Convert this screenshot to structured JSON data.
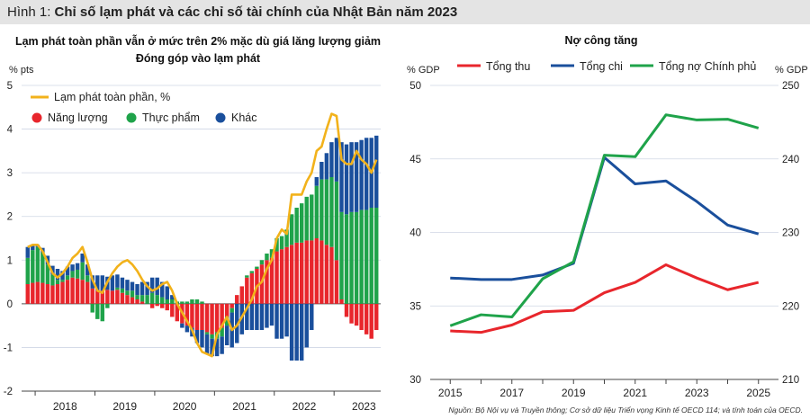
{
  "header": {
    "figure_prefix": "Hình 1:",
    "figure_title": "Chỉ số lạm phát và các chỉ số tài chính của Nhật Bản năm 2023"
  },
  "source_note": "Nguồn: Bộ Nội vụ và Truyền thông; Cơ sở dữ liệu Triển vọng Kinh tế OECD 114; và tính toán của OECD.",
  "colors": {
    "energy": "#e8262c",
    "food": "#1fa34a",
    "other": "#1a4f9c",
    "headline": "#f2b21b",
    "revenue": "#e8262c",
    "expenditure": "#1a4f9c",
    "debt": "#1fa34a"
  },
  "chart_data": [
    {
      "type": "bar",
      "stacked": true,
      "title": "Lạm phát toàn phần vẫn ở mức trên 2% mặc dù giá lăng lượng giảm",
      "subtitle": "Đóng góp vào lạm phát",
      "ylabel": "% pts",
      "ylim": [
        -2,
        5
      ],
      "yticks": [
        -2,
        -1,
        0,
        1,
        2,
        3,
        4,
        5
      ],
      "xticks": [
        "2018",
        "2019",
        "2020",
        "2021",
        "2022",
        "2023"
      ],
      "legend_position": "top-left",
      "headline_label": "Lạm phát toàn phần, %",
      "series_names": [
        "Năng lượng",
        "Thực phẩm",
        "Khác"
      ],
      "categories": [
        "2017-11",
        "2017-12",
        "2018-01",
        "2018-02",
        "2018-03",
        "2018-04",
        "2018-05",
        "2018-06",
        "2018-07",
        "2018-08",
        "2018-09",
        "2018-10",
        "2018-11",
        "2018-12",
        "2019-01",
        "2019-02",
        "2019-03",
        "2019-04",
        "2019-05",
        "2019-06",
        "2019-07",
        "2019-08",
        "2019-09",
        "2019-10",
        "2019-11",
        "2019-12",
        "2020-01",
        "2020-02",
        "2020-03",
        "2020-04",
        "2020-05",
        "2020-06",
        "2020-07",
        "2020-08",
        "2020-09",
        "2020-10",
        "2020-11",
        "2020-12",
        "2021-01",
        "2021-02",
        "2021-03",
        "2021-04",
        "2021-05",
        "2021-06",
        "2021-07",
        "2021-08",
        "2021-09",
        "2021-10",
        "2021-11",
        "2021-12",
        "2022-01",
        "2022-02",
        "2022-03",
        "2022-04",
        "2022-05",
        "2022-06",
        "2022-07",
        "2022-08",
        "2022-09",
        "2022-10",
        "2022-11",
        "2022-12",
        "2023-01",
        "2023-02",
        "2023-03",
        "2023-04",
        "2023-05",
        "2023-06",
        "2023-07",
        "2023-08",
        "2023-09"
      ],
      "energy": [
        0.45,
        0.48,
        0.5,
        0.48,
        0.45,
        0.42,
        0.45,
        0.5,
        0.55,
        0.6,
        0.58,
        0.55,
        0.5,
        0.35,
        0.3,
        0.3,
        0.32,
        0.3,
        0.32,
        0.25,
        0.2,
        0.15,
        0.1,
        0.05,
        0.0,
        -0.1,
        -0.05,
        -0.1,
        -0.15,
        -0.3,
        -0.4,
        -0.45,
        -0.5,
        -0.55,
        -0.6,
        -0.6,
        -0.65,
        -0.7,
        -0.65,
        -0.55,
        -0.3,
        -0.1,
        0.2,
        0.4,
        0.6,
        0.7,
        0.8,
        0.9,
        1.0,
        1.05,
        1.2,
        1.25,
        1.3,
        1.35,
        1.4,
        1.4,
        1.45,
        1.45,
        1.5,
        1.45,
        1.35,
        1.3,
        1.0,
        0.1,
        -0.3,
        -0.45,
        -0.5,
        -0.6,
        -0.7,
        -0.8,
        -0.6
      ],
      "food": [
        0.6,
        0.75,
        0.8,
        0.7,
        0.45,
        0.25,
        0.1,
        0.05,
        0.1,
        0.15,
        0.2,
        0.4,
        0.15,
        -0.2,
        -0.35,
        -0.4,
        -0.1,
        0.0,
        0.05,
        0.1,
        0.1,
        0.15,
        0.1,
        0.15,
        0.2,
        0.25,
        0.2,
        0.15,
        0.1,
        0.1,
        0.05,
        0.05,
        0.05,
        0.1,
        0.1,
        0.05,
        -0.05,
        -0.1,
        -0.15,
        -0.2,
        -0.2,
        -0.1,
        0.0,
        0.0,
        0.05,
        0.05,
        0.05,
        0.1,
        0.15,
        0.2,
        0.3,
        0.3,
        0.4,
        0.7,
        0.8,
        0.9,
        1.0,
        1.05,
        1.2,
        1.4,
        1.5,
        1.6,
        1.8,
        2.0,
        2.05,
        2.1,
        2.1,
        2.15,
        2.15,
        2.2,
        2.2
      ],
      "other": [
        0.25,
        0.1,
        0.05,
        0.1,
        0.2,
        0.2,
        0.25,
        0.2,
        0.2,
        0.15,
        0.15,
        0.2,
        0.25,
        0.3,
        0.35,
        0.35,
        0.3,
        0.35,
        0.3,
        0.25,
        0.25,
        0.2,
        0.25,
        0.3,
        0.3,
        0.35,
        0.4,
        0.35,
        0.3,
        0.1,
        0.0,
        -0.1,
        -0.15,
        -0.2,
        -0.3,
        -0.4,
        -0.45,
        -0.4,
        -0.4,
        -0.4,
        -0.45,
        -0.8,
        -0.9,
        -0.7,
        -0.6,
        -0.6,
        -0.6,
        -0.6,
        -0.55,
        -0.5,
        -0.8,
        -0.8,
        -0.75,
        -1.3,
        -1.3,
        -1.3,
        -1.0,
        -0.6,
        0.2,
        0.4,
        0.6,
        0.8,
        1.0,
        1.6,
        1.6,
        1.6,
        1.6,
        1.6,
        1.65,
        1.6,
        1.65
      ],
      "headline": [
        1.3,
        1.35,
        1.35,
        1.2,
        0.95,
        0.7,
        0.6,
        0.7,
        0.85,
        1.05,
        1.15,
        1.3,
        0.95,
        0.55,
        0.3,
        0.25,
        0.5,
        0.7,
        0.85,
        0.95,
        1.0,
        0.9,
        0.75,
        0.55,
        0.4,
        0.3,
        0.35,
        0.45,
        0.5,
        0.3,
        0.0,
        -0.2,
        -0.4,
        -0.6,
        -0.9,
        -1.1,
        -1.15,
        -1.2,
        -0.7,
        -0.5,
        -0.3,
        -0.6,
        -0.5,
        -0.3,
        -0.1,
        0.1,
        0.4,
        0.5,
        0.8,
        1.0,
        1.5,
        1.7,
        1.6,
        2.5,
        2.5,
        2.5,
        2.8,
        3.0,
        3.5,
        3.6,
        4.0,
        4.35,
        4.3,
        3.3,
        3.2,
        3.2,
        3.5,
        3.3,
        3.2,
        3.0,
        3.3
      ]
    },
    {
      "type": "line",
      "title": "Nợ công tăng",
      "ylabel": "% GDP",
      "ylabel_right": "% GDP",
      "ylim": [
        30,
        50
      ],
      "ylim_right": [
        210,
        250
      ],
      "yticks": [
        30,
        35,
        40,
        45,
        50
      ],
      "yticks_right": [
        210,
        220,
        230,
        240,
        250
      ],
      "xticks": [
        "2015",
        "2017",
        "2019",
        "2021",
        "2023",
        "2025"
      ],
      "legend_position": "top",
      "x": [
        2015,
        2016,
        2017,
        2018,
        2019,
        2020,
        2021,
        2022,
        2023,
        2024,
        2025
      ],
      "series": [
        {
          "name": "Tổng thu",
          "axis": "left",
          "values": [
            33.3,
            33.2,
            33.7,
            34.6,
            34.7,
            35.9,
            36.6,
            37.8,
            36.9,
            36.1,
            36.6
          ]
        },
        {
          "name": "Tổng chi",
          "axis": "left",
          "values": [
            36.9,
            36.8,
            36.8,
            37.1,
            37.9,
            45.1,
            43.3,
            43.5,
            42.1,
            40.5,
            39.9
          ]
        },
        {
          "name": "Tổng nợ Chính phủ",
          "axis": "right",
          "values": [
            217.3,
            218.8,
            218.5,
            223.7,
            226.0,
            240.5,
            240.3,
            246.0,
            245.3,
            245.4,
            244.2
          ]
        }
      ]
    }
  ]
}
